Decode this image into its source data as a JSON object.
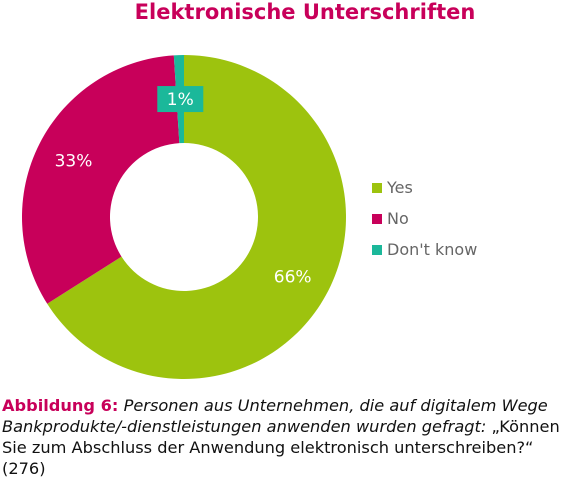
{
  "chart_data": {
    "type": "pie",
    "title": "Elektronische Unterschriften",
    "categories": [
      "Yes",
      "No",
      "Don't know"
    ],
    "values": [
      66,
      33,
      1
    ],
    "value_labels": [
      "66%",
      "33%",
      "1%"
    ],
    "legend": "right",
    "colors": [
      "#9dc30e",
      "#c8005a",
      "#1bb89a"
    ],
    "donut": true
  },
  "caption": {
    "label": "Abbildung 6:",
    "intro": "Personen aus Unternehmen, die auf digitalem Wege Bankprodukte/-dienstleistungen anwenden wurden gefragt:",
    "question": "„Können Sie zum Abschluss der Anwendung elektronisch unterschreiben?“ (276)"
  }
}
